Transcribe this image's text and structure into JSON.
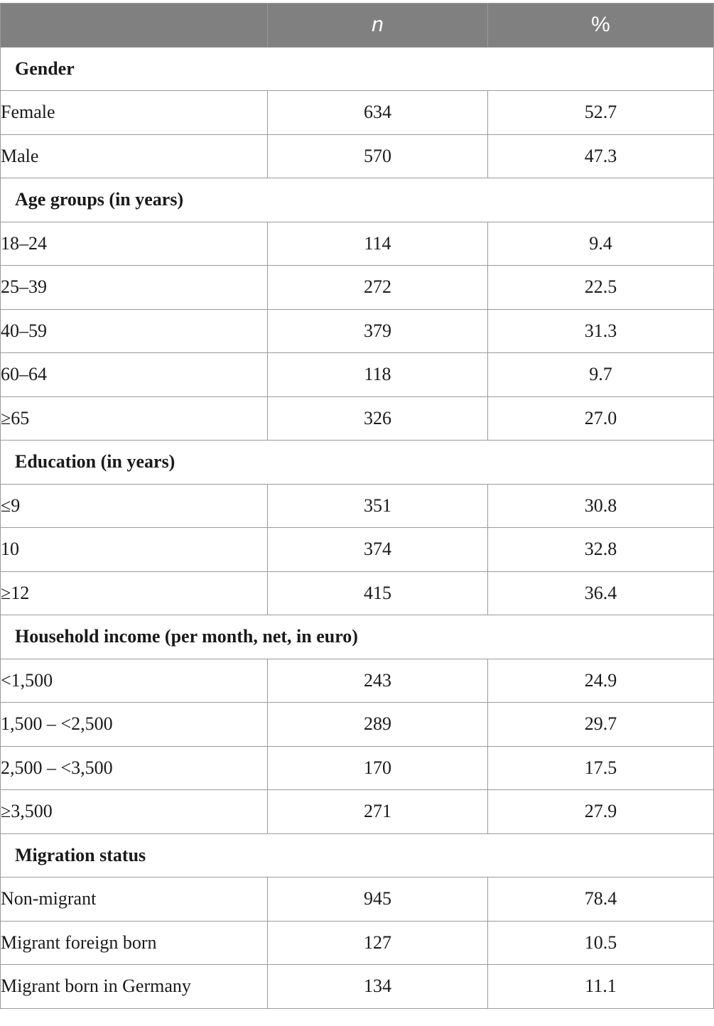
{
  "table": {
    "headers": [
      "",
      "n",
      "%"
    ],
    "sections": [
      {
        "title": "Gender",
        "rows": [
          {
            "label": "Female",
            "n": "634",
            "pct": "52.7"
          },
          {
            "label": "Male",
            "n": "570",
            "pct": "47.3"
          }
        ]
      },
      {
        "title": "Age groups (in years)",
        "rows": [
          {
            "label": "18–24",
            "n": "114",
            "pct": "9.4"
          },
          {
            "label": "25–39",
            "n": "272",
            "pct": "22.5"
          },
          {
            "label": "40–59",
            "n": "379",
            "pct": "31.3"
          },
          {
            "label": "60–64",
            "n": "118",
            "pct": "9.7"
          },
          {
            "label": "≥65",
            "n": "326",
            "pct": "27.0"
          }
        ]
      },
      {
        "title": "Education (in years)",
        "rows": [
          {
            "label": "≤9",
            "n": "351",
            "pct": "30.8"
          },
          {
            "label": "10",
            "n": "374",
            "pct": "32.8"
          },
          {
            "label": "≥12",
            "n": "415",
            "pct": "36.4"
          }
        ]
      },
      {
        "title": "Household income (per month, net, in euro)",
        "rows": [
          {
            "label": "<1,500",
            "n": "243",
            "pct": "24.9"
          },
          {
            "label": "1,500 – <2,500",
            "n": "289",
            "pct": "29.7"
          },
          {
            "label": "2,500 – <3,500",
            "n": "170",
            "pct": "17.5"
          },
          {
            "label": "≥3,500",
            "n": "271",
            "pct": "27.9"
          }
        ]
      },
      {
        "title": "Migration status",
        "rows": [
          {
            "label": "Non-migrant",
            "n": "945",
            "pct": "78.4"
          },
          {
            "label": "Migrant foreign born",
            "n": "127",
            "pct": "10.5"
          },
          {
            "label": "Migrant born in Germany",
            "n": "134",
            "pct": "11.1"
          }
        ]
      }
    ]
  },
  "colors": {
    "header_bg": "#808080",
    "header_text": "#ffffff",
    "border": "#9a9a9a"
  }
}
